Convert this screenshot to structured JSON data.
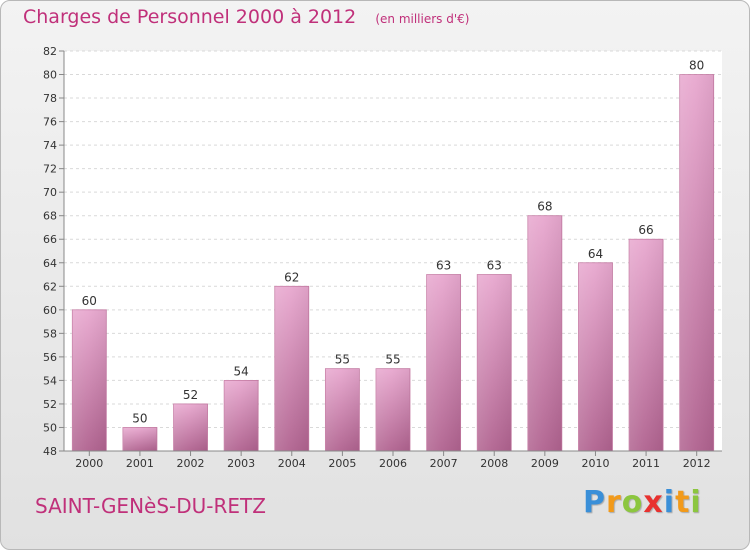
{
  "chart_data": {
    "type": "bar",
    "title": "Charges de Personnel 2000 à 2012",
    "subtitle": "(en milliers d'€)",
    "categories": [
      "2000",
      "2001",
      "2002",
      "2003",
      "2004",
      "2005",
      "2006",
      "2007",
      "2008",
      "2009",
      "2010",
      "2011",
      "2012"
    ],
    "values": [
      60,
      50,
      52,
      54,
      62,
      55,
      55,
      63,
      63,
      68,
      64,
      66,
      80
    ],
    "ylim": [
      48,
      82
    ],
    "yticks": [
      48,
      50,
      52,
      54,
      56,
      58,
      60,
      62,
      64,
      66,
      68,
      70,
      72,
      74,
      76,
      78,
      80,
      82
    ],
    "grid": true,
    "bar_color": "#d47fb0",
    "title_color": "#c0307a"
  },
  "footer": {
    "city": "SAINT-GENèS-DU-RETZ",
    "logo_letters": [
      {
        "ch": "P",
        "color": "#3a8fd8"
      },
      {
        "ch": "r",
        "color": "#f29a1a"
      },
      {
        "ch": "o",
        "color": "#8cc63f"
      },
      {
        "ch": "x",
        "color": "#e8312f"
      },
      {
        "ch": "i",
        "color": "#3a8fd8"
      },
      {
        "ch": "t",
        "color": "#f29a1a"
      },
      {
        "ch": "i",
        "color": "#8cc63f"
      }
    ]
  }
}
